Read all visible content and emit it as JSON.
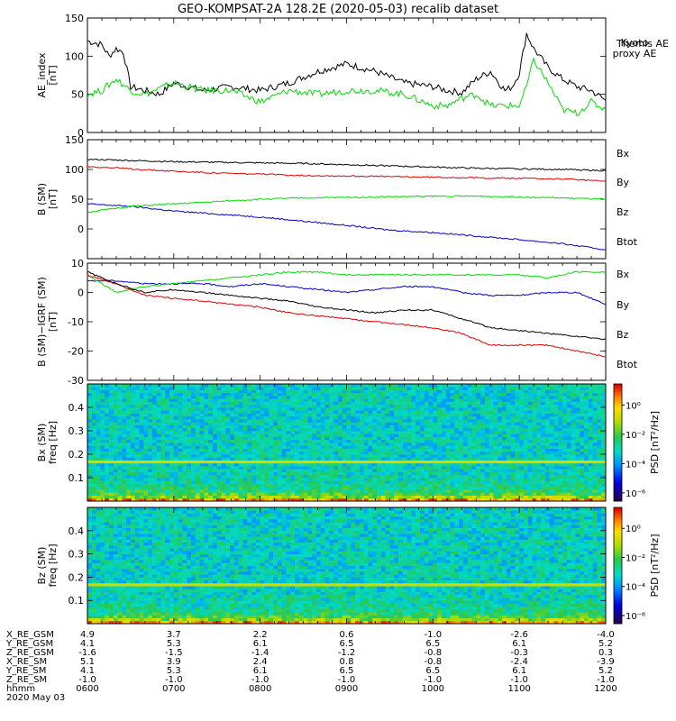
{
  "title": "GEO-KOMPSAT-2A 128.2E (2020-05-03) recalib dataset",
  "colors": {
    "axis": "#000000",
    "black": "#000000",
    "red": "#e00000",
    "green": "#00dd00",
    "blue": "#0000cc"
  },
  "chart_data": [
    {
      "type": "line",
      "ylabel": "AE_index\n[nT]",
      "ylim": [
        0,
        150
      ],
      "yticks": [
        "0",
        "50",
        "100",
        "150"
      ],
      "xlim": [
        "0600",
        "1200"
      ],
      "series": [
        {
          "name": "Themis AE",
          "color": "#000000",
          "x": [
            "0600",
            "0610",
            "0615",
            "0620",
            "0625",
            "0630",
            "0640",
            "0650",
            "0700",
            "0720",
            "0740",
            "0800",
            "0820",
            "0840",
            "0900",
            "0920",
            "0940",
            "1000",
            "1010",
            "1020",
            "1030",
            "1040",
            "1050",
            "1055",
            "1100",
            "1105",
            "1110",
            "1120",
            "1130",
            "1140",
            "1150",
            "1200"
          ],
          "y": [
            120,
            115,
            100,
            110,
            105,
            60,
            55,
            50,
            65,
            55,
            60,
            55,
            65,
            80,
            90,
            80,
            65,
            60,
            55,
            52,
            70,
            80,
            55,
            60,
            78,
            130,
            110,
            85,
            70,
            60,
            55,
            42
          ]
        },
        {
          "name": "Kyoto proxy AE",
          "color": "#00dd00",
          "x": [
            "0600",
            "0610",
            "0620",
            "0630",
            "0640",
            "0700",
            "0720",
            "0740",
            "0800",
            "0820",
            "0840",
            "0900",
            "0920",
            "0940",
            "1000",
            "1010",
            "1020",
            "1030",
            "1040",
            "1050",
            "1100",
            "1105",
            "1110",
            "1120",
            "1130",
            "1140",
            "1150",
            "1200"
          ],
          "y": [
            50,
            55,
            70,
            55,
            50,
            65,
            55,
            55,
            40,
            55,
            50,
            55,
            55,
            50,
            35,
            35,
            45,
            50,
            35,
            35,
            35,
            60,
            95,
            65,
            30,
            25,
            40,
            30
          ]
        }
      ]
    },
    {
      "type": "line",
      "ylabel": "B (SM)\n[nT]",
      "ylim": [
        -50,
        150
      ],
      "yticks": [
        "0",
        "50",
        "100",
        "150"
      ],
      "xlim": [
        "0600",
        "1200"
      ],
      "series": [
        {
          "name": "Bx",
          "color": "#0000cc",
          "x": [
            "0600",
            "0630",
            "0700",
            "0730",
            "0800",
            "0830",
            "0900",
            "0930",
            "1000",
            "1030",
            "1100",
            "1130",
            "1200"
          ],
          "y": [
            42,
            38,
            30,
            25,
            20,
            13,
            6,
            -2,
            -6,
            -12,
            -18,
            -25,
            -35
          ]
        },
        {
          "name": "By",
          "color": "#00dd00",
          "x": [
            "0600",
            "0630",
            "0700",
            "0730",
            "0800",
            "0830",
            "0900",
            "0930",
            "1000",
            "1030",
            "1100",
            "1130",
            "1200"
          ],
          "y": [
            28,
            38,
            42,
            46,
            50,
            52,
            53,
            54,
            55,
            55,
            54,
            52,
            50
          ]
        },
        {
          "name": "Bz",
          "color": "#e00000",
          "x": [
            "0600",
            "0630",
            "0700",
            "0730",
            "0800",
            "0830",
            "0900",
            "0930",
            "1000",
            "1030",
            "1100",
            "1130",
            "1200"
          ],
          "y": [
            105,
            101,
            97,
            94,
            92,
            90,
            89,
            88,
            87,
            86,
            85,
            84,
            80
          ]
        },
        {
          "name": "Btot",
          "color": "#000000",
          "x": [
            "0600",
            "0630",
            "0700",
            "0730",
            "0800",
            "0830",
            "0900",
            "0930",
            "1000",
            "1030",
            "1100",
            "1130",
            "1200"
          ],
          "y": [
            117,
            115,
            113,
            112,
            111,
            110,
            108,
            106,
            104,
            102,
            101,
            100,
            98
          ]
        }
      ]
    },
    {
      "type": "line",
      "ylabel": "B (SM)−IGRF (SM)\n[nT]",
      "ylim": [
        -30,
        10
      ],
      "yticks": [
        "-30",
        "-20",
        "-10",
        "0",
        "10"
      ],
      "xlim": [
        "0600",
        "1200"
      ],
      "series": [
        {
          "name": "Bx",
          "color": "#0000cc",
          "x": [
            "0600",
            "0620",
            "0640",
            "0700",
            "0720",
            "0740",
            "0800",
            "0820",
            "0840",
            "0900",
            "0920",
            "0940",
            "1000",
            "1020",
            "1040",
            "1100",
            "1120",
            "1140",
            "1200"
          ],
          "y": [
            4,
            4,
            3,
            3,
            3,
            2,
            3,
            2,
            1,
            0,
            1,
            2,
            2,
            0,
            -1,
            -1,
            0,
            0,
            -4
          ]
        },
        {
          "name": "By",
          "color": "#00dd00",
          "x": [
            "0600",
            "0620",
            "0640",
            "0700",
            "0720",
            "0740",
            "0800",
            "0820",
            "0840",
            "0900",
            "0920",
            "0940",
            "1000",
            "1020",
            "1040",
            "1100",
            "1120",
            "1140",
            "1200"
          ],
          "y": [
            6,
            0,
            2,
            3,
            4,
            5,
            6,
            7,
            7,
            6,
            6,
            6,
            6,
            6,
            6,
            6,
            5,
            7,
            7
          ]
        },
        {
          "name": "Bz",
          "color": "#e00000",
          "x": [
            "0600",
            "0620",
            "0640",
            "0700",
            "0720",
            "0740",
            "0800",
            "0820",
            "0840",
            "0900",
            "0920",
            "0940",
            "1000",
            "1020",
            "1040",
            "1100",
            "1120",
            "1140",
            "1200"
          ],
          "y": [
            6,
            3,
            -1,
            -2,
            -3,
            -4,
            -5,
            -7,
            -8,
            -9,
            -10,
            -11,
            -12,
            -14,
            -18,
            -18,
            -18,
            -20,
            -22
          ]
        },
        {
          "name": "Btot",
          "color": "#000000",
          "x": [
            "0600",
            "0620",
            "0640",
            "0700",
            "0720",
            "0740",
            "0800",
            "0820",
            "0840",
            "0900",
            "0920",
            "0940",
            "1000",
            "1020",
            "1040",
            "1100",
            "1120",
            "1140",
            "1200"
          ],
          "y": [
            7,
            3,
            0,
            1,
            0,
            -1,
            -2,
            -3,
            -5,
            -6,
            -7,
            -6,
            -6,
            -9,
            -12,
            -13,
            -14,
            -15,
            -16
          ]
        }
      ]
    },
    {
      "type": "heatmap",
      "ylabel": "Bx (SM)\nfreq [Hz]",
      "ylim": [
        0,
        0.5
      ],
      "yticks": [
        "0.1",
        "0.2",
        "0.3",
        "0.4"
      ],
      "xlim": [
        "0600",
        "1200"
      ],
      "colorbar": {
        "label": "PSD [nT²/Hz]",
        "ticks": [
          "10⁰",
          "10⁻²",
          "10⁻⁴",
          "10⁻⁶"
        ]
      },
      "features": [
        {
          "freq": 0.17,
          "note": "band"
        }
      ]
    },
    {
      "type": "heatmap",
      "ylabel": "Bz (SM)\nfreq [Hz]",
      "ylim": [
        0,
        0.5
      ],
      "yticks": [
        "0.1",
        "0.2",
        "0.3",
        "0.4"
      ],
      "xlim": [
        "0600",
        "1200"
      ],
      "colorbar": {
        "label": "PSD [nT²/Hz]",
        "ticks": [
          "10⁰",
          "10⁻²",
          "10⁻⁴",
          "10⁻⁶"
        ]
      },
      "features": [
        {
          "freq": 0.17,
          "note": "band"
        }
      ]
    }
  ],
  "footer": {
    "rows": [
      {
        "label": "X_RE_GSM",
        "values": [
          "4.9",
          "3.7",
          "2.2",
          "0.6",
          "-1.0",
          "-2.6",
          "-4.0"
        ]
      },
      {
        "label": "Y_RE_GSM",
        "values": [
          "4.1",
          "5.3",
          "6.1",
          "6.5",
          "6.5",
          "6.1",
          "5.2"
        ]
      },
      {
        "label": "Z_RE_GSM",
        "values": [
          "-1.6",
          "-1.5",
          "-1.4",
          "-1.2",
          "-0.8",
          "-0.3",
          "0.3"
        ]
      },
      {
        "label": "X_RE_SM",
        "values": [
          "5.1",
          "3.9",
          "2.4",
          "0.8",
          "-0.8",
          "-2.4",
          "-3.9"
        ]
      },
      {
        "label": "Y_RE_SM",
        "values": [
          "4.1",
          "5.3",
          "6.1",
          "6.5",
          "6.5",
          "6.1",
          "5.2"
        ]
      },
      {
        "label": "Z_RE_SM",
        "values": [
          "-1.0",
          "-1.0",
          "-1.0",
          "-1.0",
          "-1.0",
          "-1.0",
          "-1.0"
        ]
      },
      {
        "label": "hhmm",
        "values": [
          "0600",
          "0700",
          "0800",
          "0900",
          "1000",
          "1100",
          "1200"
        ]
      }
    ],
    "date": "2020 May 03"
  }
}
